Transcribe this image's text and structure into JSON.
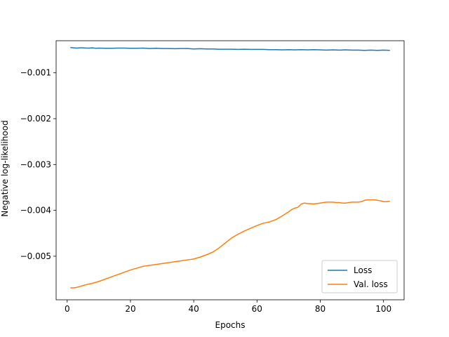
{
  "chart_data": {
    "type": "line",
    "title": "",
    "xlabel": "Epochs",
    "ylabel": "Negative log-likelihood",
    "xlim": [
      -3.5,
      106.5
    ],
    "ylim": [
      -0.00595,
      -0.0003
    ],
    "xticks": [
      {
        "value": 0,
        "label": "0"
      },
      {
        "value": 20,
        "label": "20"
      },
      {
        "value": 40,
        "label": "40"
      },
      {
        "value": 60,
        "label": "60"
      },
      {
        "value": 80,
        "label": "80"
      },
      {
        "value": 100,
        "label": "100"
      }
    ],
    "yticks": [
      {
        "value": -0.001,
        "label": "−0.001"
      },
      {
        "value": -0.002,
        "label": "−0.002"
      },
      {
        "value": -0.003,
        "label": "−0.003"
      },
      {
        "value": -0.004,
        "label": "−0.004"
      },
      {
        "value": -0.005,
        "label": "−0.005"
      }
    ],
    "grid": false,
    "legend_position": "lower-right",
    "series": [
      {
        "name": "Loss",
        "color": "#1f77b4",
        "x": [
          1,
          2,
          3,
          4,
          5,
          6,
          7,
          8,
          9,
          10,
          12,
          14,
          16,
          18,
          20,
          22,
          24,
          26,
          28,
          30,
          32,
          34,
          36,
          38,
          40,
          42,
          44,
          46,
          48,
          50,
          52,
          54,
          56,
          58,
          60,
          62,
          64,
          66,
          68,
          70,
          72,
          74,
          76,
          78,
          80,
          82,
          84,
          86,
          88,
          90,
          92,
          94,
          96,
          98,
          100,
          102
        ],
        "y": [
          -0.00045,
          -0.000455,
          -0.00046,
          -0.000455,
          -0.000455,
          -0.00046,
          -0.00046,
          -0.000455,
          -0.000465,
          -0.00046,
          -0.000465,
          -0.000465,
          -0.00046,
          -0.00046,
          -0.000465,
          -0.000465,
          -0.00046,
          -0.00047,
          -0.000465,
          -0.00047,
          -0.00047,
          -0.000475,
          -0.00047,
          -0.00047,
          -0.00048,
          -0.000475,
          -0.00048,
          -0.00048,
          -0.000485,
          -0.000485,
          -0.000485,
          -0.00049,
          -0.000485,
          -0.00049,
          -0.00049,
          -0.00049,
          -0.000495,
          -0.000495,
          -0.0005,
          -0.000495,
          -0.0005,
          -0.000495,
          -0.0005,
          -0.000495,
          -0.0005,
          -0.000505,
          -0.0005,
          -0.000505,
          -0.0005,
          -0.000505,
          -0.000505,
          -0.00051,
          -0.000505,
          -0.00051,
          -0.000505,
          -0.00051
        ]
      },
      {
        "name": "Val. loss",
        "color": "#ff7f0e",
        "x": [
          1,
          2,
          3,
          4,
          5,
          6,
          8,
          10,
          12,
          14,
          16,
          18,
          20,
          22,
          24,
          26,
          28,
          30,
          32,
          34,
          36,
          38,
          40,
          42,
          44,
          46,
          48,
          50,
          52,
          54,
          56,
          58,
          60,
          62,
          64,
          66,
          68,
          70,
          71,
          72,
          73,
          74,
          75,
          76,
          78,
          80,
          81,
          82,
          83,
          84,
          85,
          86,
          87,
          88,
          89,
          90,
          91,
          92,
          93,
          94,
          95,
          96,
          97,
          98,
          99,
          100,
          101,
          102
        ],
        "y": [
          -0.00569,
          -0.00569,
          -0.00568,
          -0.00566,
          -0.00564,
          -0.00562,
          -0.00559,
          -0.00555,
          -0.0055,
          -0.00545,
          -0.0054,
          -0.00535,
          -0.0053,
          -0.00526,
          -0.00522,
          -0.0052,
          -0.00518,
          -0.00516,
          -0.00514,
          -0.00512,
          -0.0051,
          -0.00508,
          -0.00506,
          -0.00502,
          -0.00497,
          -0.00491,
          -0.00482,
          -0.00471,
          -0.0046,
          -0.00452,
          -0.00445,
          -0.00439,
          -0.00433,
          -0.00428,
          -0.00425,
          -0.0042,
          -0.00412,
          -0.00403,
          -0.00398,
          -0.00395,
          -0.00393,
          -0.00386,
          -0.00384,
          -0.00385,
          -0.00386,
          -0.00384,
          -0.00383,
          -0.00382,
          -0.00382,
          -0.00382,
          -0.00383,
          -0.00383,
          -0.00384,
          -0.00384,
          -0.00383,
          -0.00382,
          -0.00382,
          -0.00382,
          -0.00381,
          -0.00378,
          -0.00377,
          -0.00377,
          -0.00377,
          -0.00378,
          -0.00379,
          -0.00381,
          -0.00381,
          -0.0038
        ]
      }
    ]
  }
}
